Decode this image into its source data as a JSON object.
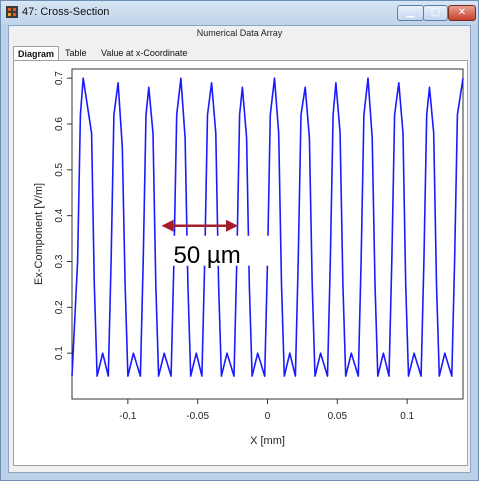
{
  "window": {
    "title": "47: Cross-Section",
    "subtitle": "Numerical Data Array",
    "controls": {
      "minimize_icon": "minimize-icon",
      "maximize_icon": "maximize-icon",
      "close_icon": "close-icon"
    }
  },
  "tabs": [
    {
      "label": "Diagram",
      "active": true
    },
    {
      "label": "Table",
      "active": false
    },
    {
      "label": "Value at x-Coordinate",
      "active": false
    }
  ],
  "annotation": {
    "text": "50 µm",
    "arrow_color": "#a31d2a"
  },
  "colors": {
    "series": "#1a1aff",
    "accent": "#6f8eb3"
  },
  "chart_data": {
    "type": "line",
    "xlabel": "X [mm]",
    "ylabel": "Ex-Component [V/m]",
    "xlim": [
      -0.14,
      0.14
    ],
    "ylim": [
      0.0,
      0.72
    ],
    "xticks": [
      "-0.1",
      "-0.05",
      "0",
      "0.05",
      "0.1"
    ],
    "yticks": [
      "0.1",
      "0.2",
      "0.3",
      "0.4",
      "0.5",
      "0.6",
      "0.7"
    ],
    "series": [
      {
        "color": "#1a1aff",
        "x": [
          -0.14,
          -0.136,
          -0.134,
          -0.132,
          -0.129,
          -0.126,
          -0.124,
          -0.122,
          -0.118,
          -0.114,
          -0.112,
          -0.11,
          -0.107,
          -0.104,
          -0.102,
          -0.1,
          -0.096,
          -0.091,
          -0.089,
          -0.087,
          -0.085,
          -0.082,
          -0.08,
          -0.078,
          -0.074,
          -0.069,
          -0.067,
          -0.065,
          -0.062,
          -0.059,
          -0.057,
          -0.055,
          -0.051,
          -0.047,
          -0.045,
          -0.043,
          -0.04,
          -0.037,
          -0.035,
          -0.033,
          -0.029,
          -0.024,
          -0.022,
          -0.02,
          -0.018,
          -0.015,
          -0.013,
          -0.011,
          -0.007,
          -0.002,
          0.0,
          0.002,
          0.005,
          0.008,
          0.01,
          0.012,
          0.016,
          0.02,
          0.022,
          0.024,
          0.027,
          0.03,
          0.032,
          0.034,
          0.038,
          0.043,
          0.045,
          0.047,
          0.049,
          0.052,
          0.054,
          0.056,
          0.06,
          0.065,
          0.067,
          0.069,
          0.072,
          0.075,
          0.077,
          0.079,
          0.083,
          0.087,
          0.089,
          0.091,
          0.094,
          0.097,
          0.099,
          0.101,
          0.105,
          0.11,
          0.112,
          0.114,
          0.116,
          0.119,
          0.121,
          0.123,
          0.127,
          0.132,
          0.134,
          0.136,
          0.14
        ],
        "y": [
          0.05,
          0.3,
          0.62,
          0.7,
          0.64,
          0.58,
          0.25,
          0.05,
          0.1,
          0.05,
          0.3,
          0.62,
          0.69,
          0.55,
          0.25,
          0.05,
          0.1,
          0.05,
          0.3,
          0.62,
          0.68,
          0.58,
          0.25,
          0.05,
          0.1,
          0.05,
          0.3,
          0.62,
          0.7,
          0.57,
          0.25,
          0.05,
          0.1,
          0.05,
          0.3,
          0.62,
          0.69,
          0.58,
          0.25,
          0.05,
          0.1,
          0.05,
          0.3,
          0.62,
          0.68,
          0.57,
          0.25,
          0.05,
          0.1,
          0.05,
          0.3,
          0.62,
          0.7,
          0.58,
          0.25,
          0.05,
          0.1,
          0.05,
          0.3,
          0.62,
          0.68,
          0.57,
          0.25,
          0.05,
          0.1,
          0.05,
          0.3,
          0.62,
          0.69,
          0.58,
          0.25,
          0.05,
          0.1,
          0.05,
          0.3,
          0.62,
          0.7,
          0.57,
          0.25,
          0.05,
          0.1,
          0.05,
          0.3,
          0.62,
          0.69,
          0.58,
          0.25,
          0.05,
          0.1,
          0.05,
          0.3,
          0.62,
          0.68,
          0.58,
          0.25,
          0.05,
          0.1,
          0.05,
          0.3,
          0.62,
          0.7
        ]
      }
    ]
  }
}
